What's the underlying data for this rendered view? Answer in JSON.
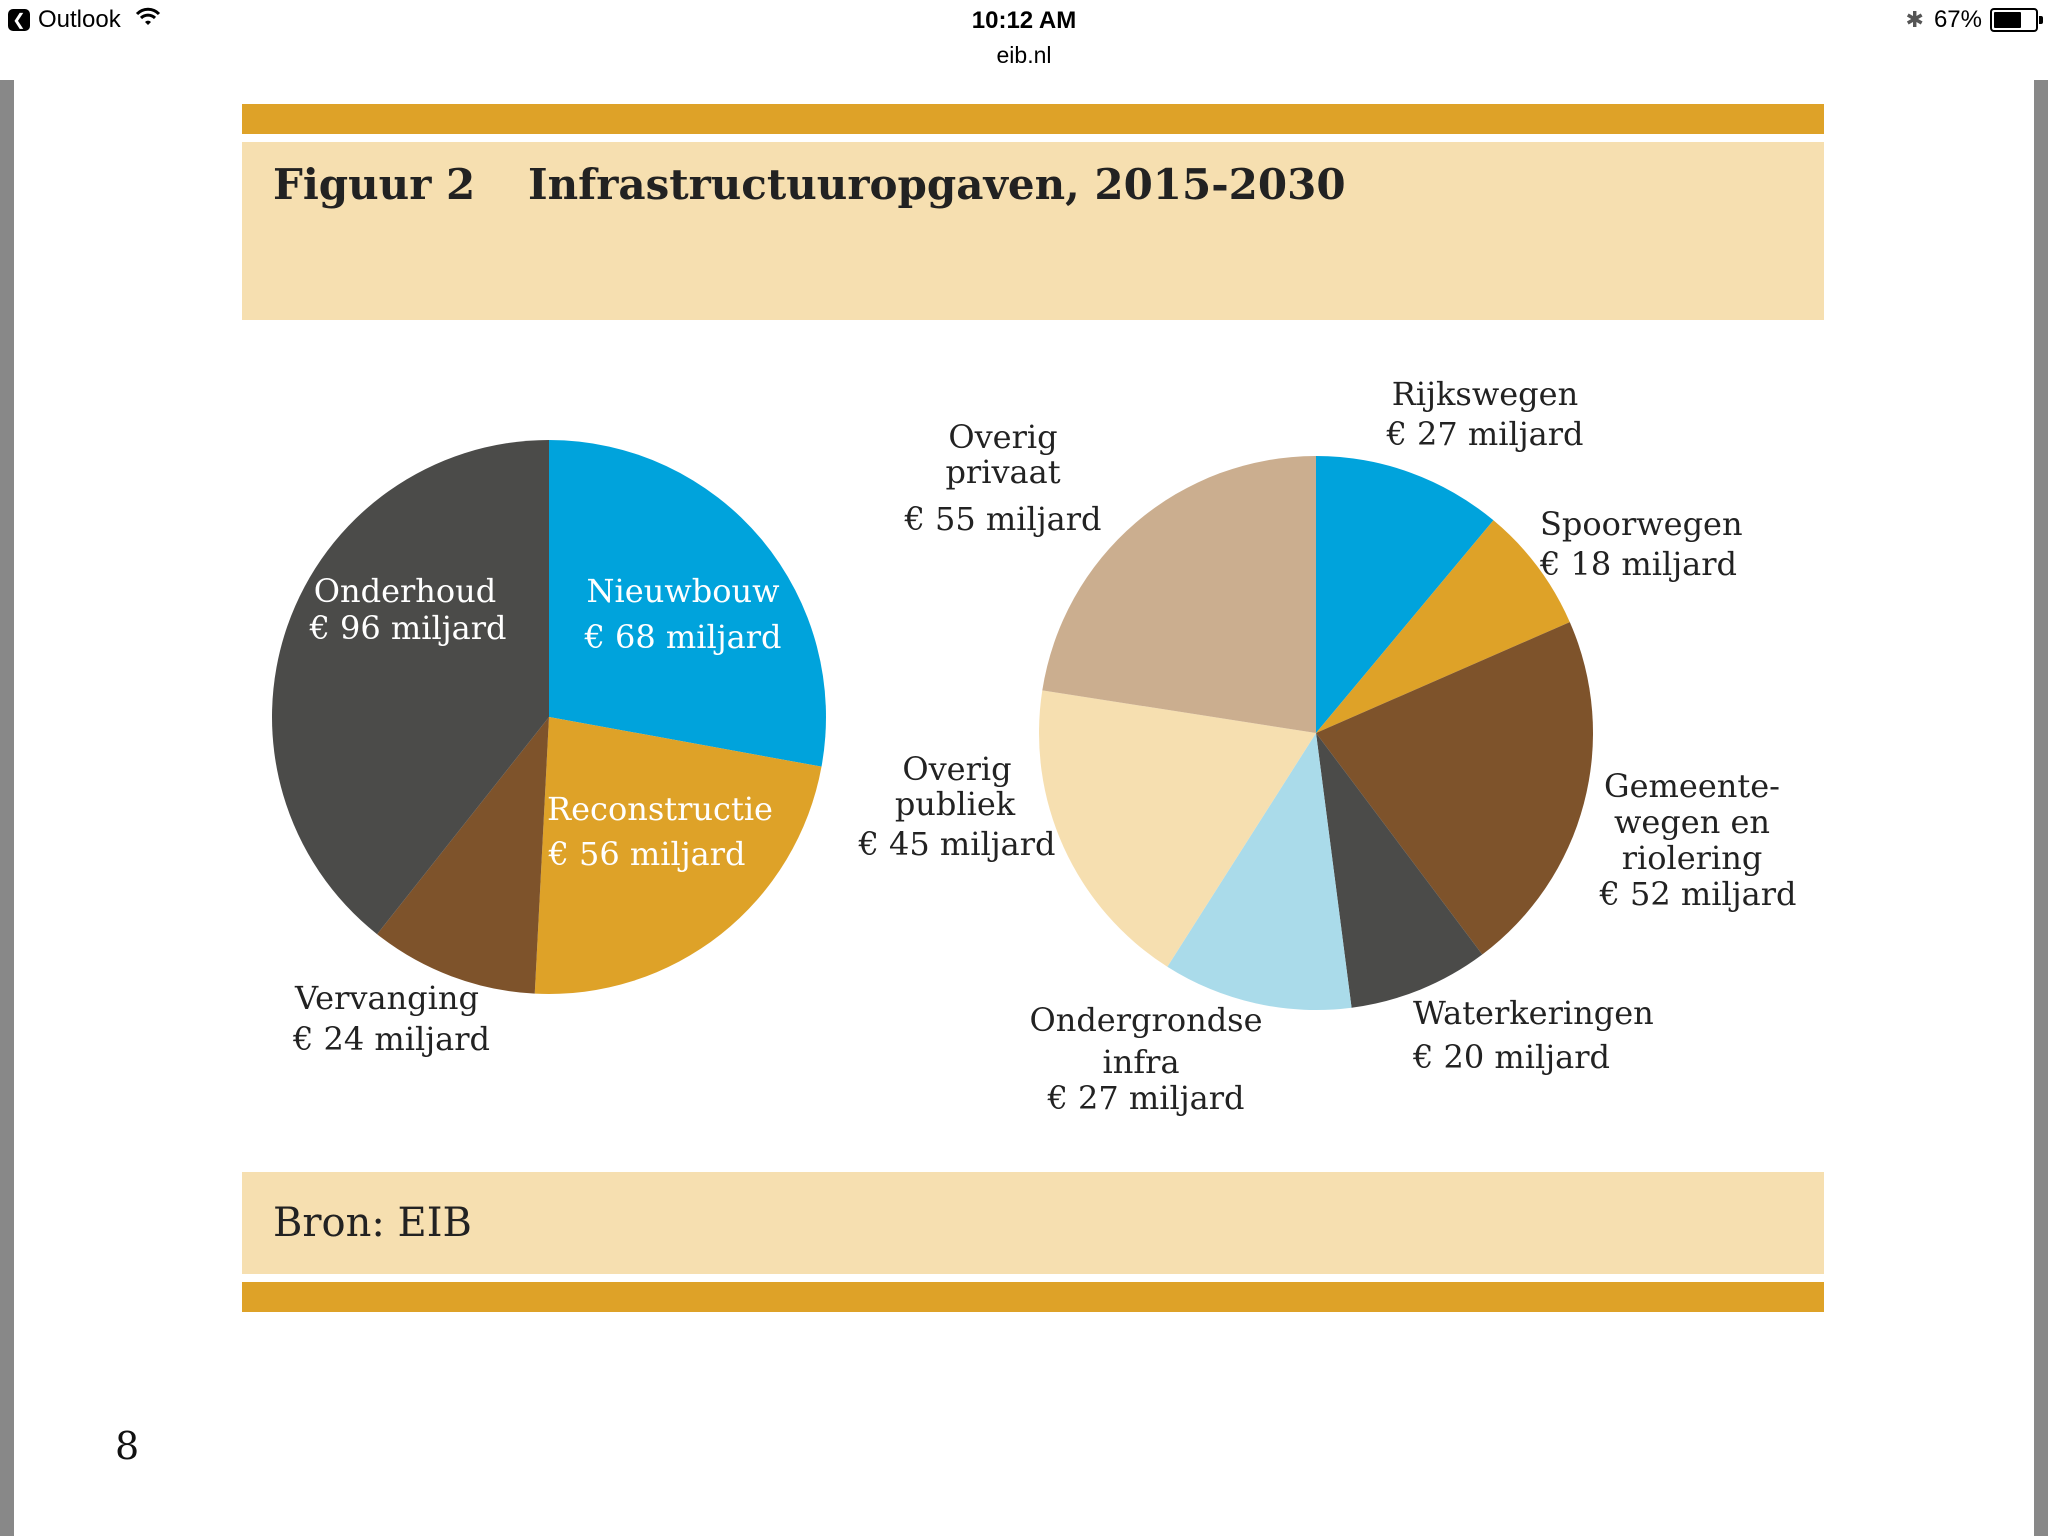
{
  "status_bar": {
    "back_app": "Outlook",
    "time": "10:12 AM",
    "url": "eib.nl",
    "battery": "67%",
    "battery_level": 0.67
  },
  "figure": {
    "number": "Figuur 2",
    "title": "Infrastructuuropgaven, 2015-2030",
    "source": "Bron: EIB",
    "page_number": "8"
  },
  "colors": {
    "gold": "#dea228",
    "cream": "#f6dfb0"
  },
  "chart_data": [
    {
      "type": "pie",
      "title": "",
      "unit": "miljard",
      "slices": [
        {
          "label": "Nieuwbouw",
          "value_label": "€ 68 miljard",
          "value": 68,
          "color": "#00a3dc"
        },
        {
          "label": "Reconstructie",
          "value_label": "€ 56 miljard",
          "value": 56,
          "color": "#dea228"
        },
        {
          "label": "Vervanging",
          "value_label": "€ 24 miljard",
          "value": 24,
          "color": "#7e532b"
        },
        {
          "label": "Onderhoud",
          "value_label": "€ 96 miljard",
          "value": 96,
          "color": "#4b4b49"
        }
      ]
    },
    {
      "type": "pie",
      "title": "",
      "unit": "miljard",
      "slices": [
        {
          "label": "Rijkswegen",
          "value_label": "€ 27 miljard",
          "value": 27,
          "color": "#00a3dc"
        },
        {
          "label": "Spoorwegen",
          "value_label": "€ 18 miljard",
          "value": 18,
          "color": "#dea228"
        },
        {
          "label": "Gemeente-wegen en riolering",
          "value_label": "€ 52 miljard",
          "value": 52,
          "color": "#7e532b"
        },
        {
          "label": "Waterkeringen",
          "value_label": "€ 20 miljard",
          "value": 20,
          "color": "#4b4b49"
        },
        {
          "label": "Ondergrondse infra",
          "value_label": "€ 27 miljard",
          "value": 27,
          "color": "#aadbea"
        },
        {
          "label": "Overig publiek",
          "value_label": "€ 45 miljard",
          "value": 45,
          "color": "#f6dfb0"
        },
        {
          "label": "Overig privaat",
          "value_label": "€ 55 miljard",
          "value": 55,
          "color": "#cbae8f"
        }
      ]
    }
  ]
}
